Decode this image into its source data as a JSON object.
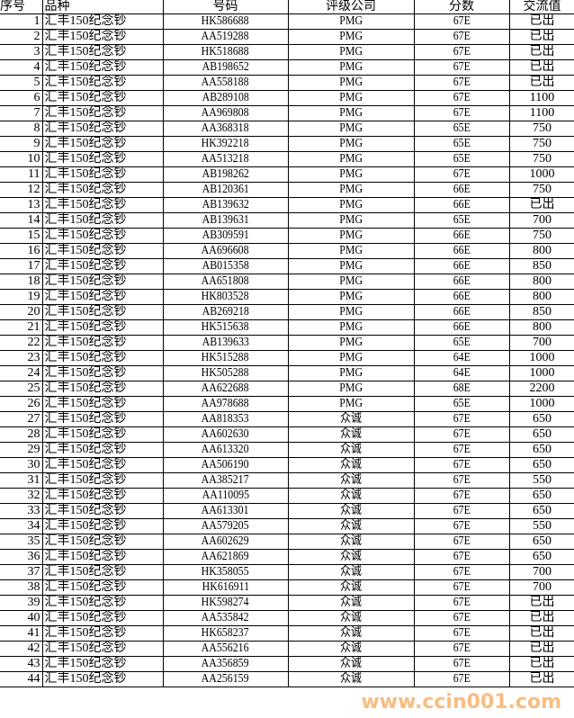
{
  "headers": [
    "序号",
    "品种",
    "号码",
    "评级公司",
    "分数",
    "交流值"
  ],
  "rows": [
    [
      "1",
      "汇丰150纪念钞",
      "HK586688",
      "PMG",
      "67E",
      "已出"
    ],
    [
      "2",
      "汇丰150纪念钞",
      "AA519288",
      "PMG",
      "67E",
      "已出"
    ],
    [
      "3",
      "汇丰150纪念钞",
      "HK518688",
      "PMG",
      "67E",
      "已出"
    ],
    [
      "4",
      "汇丰150纪念钞",
      "AB198652",
      "PMG",
      "67E",
      "已出"
    ],
    [
      "5",
      "汇丰150纪念钞",
      "AA558188",
      "PMG",
      "67E",
      "已出"
    ],
    [
      "6",
      "汇丰150纪念钞",
      "AB289108",
      "PMG",
      "67E",
      "1100"
    ],
    [
      "7",
      "汇丰150纪念钞",
      "AA969808",
      "PMG",
      "67E",
      "1100"
    ],
    [
      "8",
      "汇丰150纪念钞",
      "AA368318",
      "PMG",
      "65E",
      "750"
    ],
    [
      "9",
      "汇丰150纪念钞",
      "HK392218",
      "PMG",
      "65E",
      "750"
    ],
    [
      "10",
      "汇丰150纪念钞",
      "AA513218",
      "PMG",
      "65E",
      "750"
    ],
    [
      "11",
      "汇丰150纪念钞",
      "AB198262",
      "PMG",
      "67E",
      "1000"
    ],
    [
      "12",
      "汇丰150纪念钞",
      "AB120361",
      "PMG",
      "66E",
      "750"
    ],
    [
      "13",
      "汇丰150纪念钞",
      "AB139632",
      "PMG",
      "66E",
      "已出"
    ],
    [
      "14",
      "汇丰150纪念钞",
      "AB139631",
      "PMG",
      "65E",
      "700"
    ],
    [
      "15",
      "汇丰150纪念钞",
      "AB309591",
      "PMG",
      "66E",
      "750"
    ],
    [
      "16",
      "汇丰150纪念钞",
      "AA696608",
      "PMG",
      "66E",
      "800"
    ],
    [
      "17",
      "汇丰150纪念钞",
      "AB015358",
      "PMG",
      "66E",
      "850"
    ],
    [
      "18",
      "汇丰150纪念钞",
      "AA651808",
      "PMG",
      "66E",
      "800"
    ],
    [
      "19",
      "汇丰150纪念钞",
      "HK803528",
      "PMG",
      "66E",
      "800"
    ],
    [
      "20",
      "汇丰150纪念钞",
      "AB269218",
      "PMG",
      "66E",
      "850"
    ],
    [
      "21",
      "汇丰150纪念钞",
      "HK515638",
      "PMG",
      "66E",
      "800"
    ],
    [
      "22",
      "汇丰150纪念钞",
      "AB139633",
      "PMG",
      "65E",
      "700"
    ],
    [
      "23",
      "汇丰150纪念钞",
      "HK515288",
      "PMG",
      "64E",
      "1000"
    ],
    [
      "24",
      "汇丰150纪念钞",
      "HK505288",
      "PMG",
      "64E",
      "1000"
    ],
    [
      "25",
      "汇丰150纪念钞",
      "AA622688",
      "PMG",
      "68E",
      "2200"
    ],
    [
      "26",
      "汇丰150纪念钞",
      "AA978688",
      "PMG",
      "65E",
      "1000"
    ],
    [
      "27",
      "汇丰150纪念钞",
      "AA818353",
      "众诚",
      "67E",
      "650"
    ],
    [
      "28",
      "汇丰150纪念钞",
      "AA602630",
      "众诚",
      "67E",
      "650"
    ],
    [
      "29",
      "汇丰150纪念钞",
      "AA613320",
      "众诚",
      "67E",
      "650"
    ],
    [
      "30",
      "汇丰150纪念钞",
      "AA506190",
      "众诚",
      "67E",
      "650"
    ],
    [
      "31",
      "汇丰150纪念钞",
      "AA385217",
      "众诚",
      "67E",
      "550"
    ],
    [
      "32",
      "汇丰150纪念钞",
      "AA110095",
      "众诚",
      "67E",
      "650"
    ],
    [
      "33",
      "汇丰150纪念钞",
      "AA613301",
      "众诚",
      "67E",
      "650"
    ],
    [
      "34",
      "汇丰150纪念钞",
      "AA579205",
      "众诚",
      "67E",
      "550"
    ],
    [
      "35",
      "汇丰150纪念钞",
      "AA602629",
      "众诚",
      "67E",
      "650"
    ],
    [
      "36",
      "汇丰150纪念钞",
      "AA621869",
      "众诚",
      "67E",
      "650"
    ],
    [
      "37",
      "汇丰150纪念钞",
      "HK358055",
      "众诚",
      "67E",
      "700"
    ],
    [
      "38",
      "汇丰150纪念钞",
      "HK616911",
      "众诚",
      "67E",
      "700"
    ],
    [
      "39",
      "汇丰150纪念钞",
      "HK598274",
      "众诚",
      "67E",
      "已出"
    ],
    [
      "40",
      "汇丰150纪念钞",
      "AA535842",
      "众诚",
      "67E",
      "已出"
    ],
    [
      "41",
      "汇丰150纪念钞",
      "HK658237",
      "众诚",
      "67E",
      "已出"
    ],
    [
      "42",
      "汇丰150纪念钞",
      "AA556216",
      "众诚",
      "67E",
      "已出"
    ],
    [
      "43",
      "汇丰150纪念钞",
      "AA356859",
      "众诚",
      "67E",
      "已出"
    ],
    [
      "44",
      "汇丰150纪念钞",
      "AA256159",
      "众诚",
      "67E",
      "已出"
    ]
  ],
  "watermark": "www.ccin001.com",
  "colors": {
    "watermark": "#f7b26a",
    "grid": "#000000"
  }
}
